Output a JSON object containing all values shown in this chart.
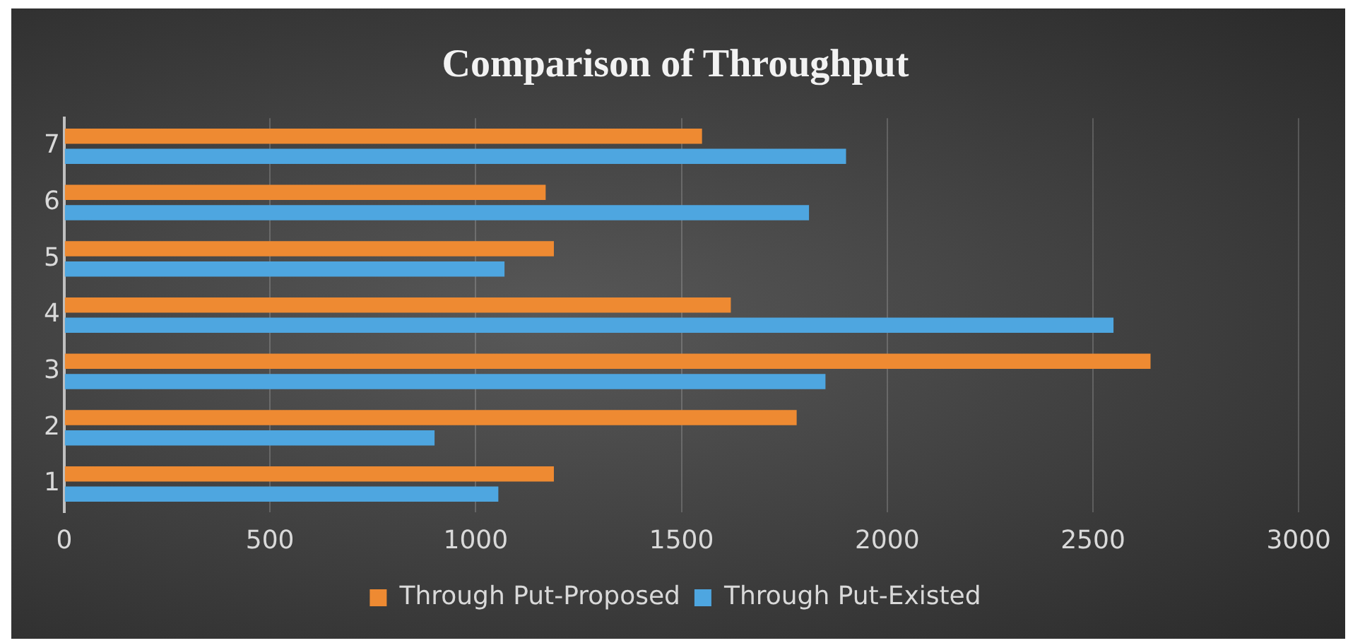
{
  "chart_data": {
    "type": "bar",
    "orientation": "horizontal",
    "title": "Comparison of Throughput",
    "categories": [
      "7",
      "6",
      "5",
      "4",
      "3",
      "2",
      "1"
    ],
    "series": [
      {
        "name": "Through Put-Proposed",
        "color": "#ee8a32",
        "values": [
          1550,
          1170,
          1190,
          1620,
          2640,
          1780,
          1190
        ]
      },
      {
        "name": "Through Put-Existed",
        "color": "#4ea6e0",
        "values": [
          1900,
          1810,
          1070,
          2550,
          1850,
          900,
          1055
        ]
      }
    ],
    "xlim": [
      0,
      3000
    ],
    "xticks": [
      0,
      500,
      1000,
      1500,
      2000,
      2500,
      3000
    ],
    "grid": "x",
    "legend": "bottom"
  }
}
